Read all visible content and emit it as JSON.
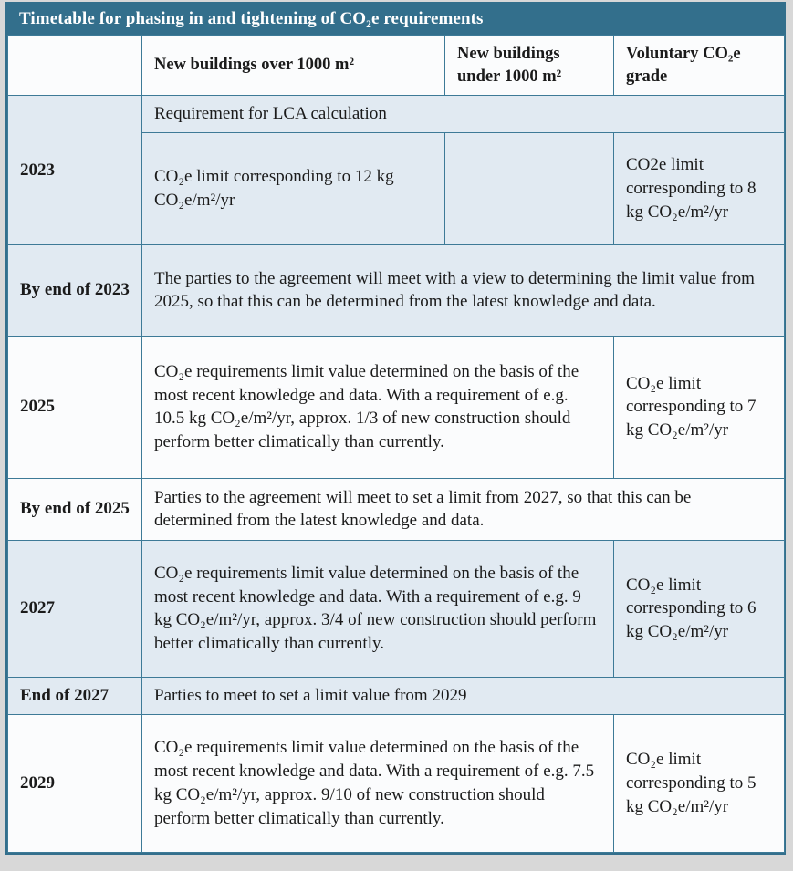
{
  "theme": {
    "page_bg": "#d8d8d8",
    "header_bg": "#336f8c",
    "header_text": "#ffffff",
    "border": "#3d7a97",
    "row_blue": "#e1eaf2",
    "row_white": "#fbfcfd",
    "text": "#1b1b1b"
  },
  "title": "Timetable for phasing in and tightening of CO₂e requirements",
  "columns": {
    "year": "",
    "over_1000": "New buildings over 1000 m²",
    "under_1000": "New buildings under 1000 m²",
    "voluntary": "Voluntary CO₂e grade"
  },
  "rows": {
    "y2023": {
      "label": "2023",
      "lca": "Requirement for LCA calculation",
      "over": "CO₂e limit corresponding to 12 kg CO₂e/m²/yr",
      "under": "",
      "voluntary": "CO2e limit corresponding to 8 kg CO₂e/m²/yr"
    },
    "by2023": {
      "label": "By end of 2023",
      "text": "The parties to the agreement will meet with a view to determining the limit value from 2025, so that this can be determined from the latest knowledge and data."
    },
    "y2025": {
      "label": "2025",
      "main": "CO₂e requirements limit value determined on the basis of the most recent knowledge and data. With a requirement of e.g. 10.5 kg CO₂e/m²/yr, approx. 1/3 of new construction should perform better climatically than currently.",
      "voluntary": "CO₂e limit corresponding to 7 kg CO₂e/m²/yr"
    },
    "by2025": {
      "label": "By end of 2025",
      "text": "Parties to the agreement will meet  to set a limit from 2027, so that this can be determined from the latest knowledge and data."
    },
    "y2027": {
      "label": "2027",
      "main": "CO₂e requirements limit value determined on the basis of the most recent knowledge and data. With a requirement of e.g. 9 kg CO₂e/m²/yr, approx. 3/4 of new construction should perform better climatically than currently.",
      "voluntary": "CO₂e limit corresponding to 6 kg CO₂e/m²/yr"
    },
    "end2027": {
      "label": "End of 2027",
      "text": "Parties to meet to set a limit value from 2029"
    },
    "y2029": {
      "label": "2029",
      "main": "CO₂e requirements limit value determined on the basis of the most recent knowledge and data. With a requirement of e.g. 7.5 kg CO₂e/m²/yr, approx. 9/10 of new construction should perform better climatically than currently.",
      "voluntary": "CO₂e limit corresponding to 5 kg CO₂e/m²/yr"
    }
  }
}
